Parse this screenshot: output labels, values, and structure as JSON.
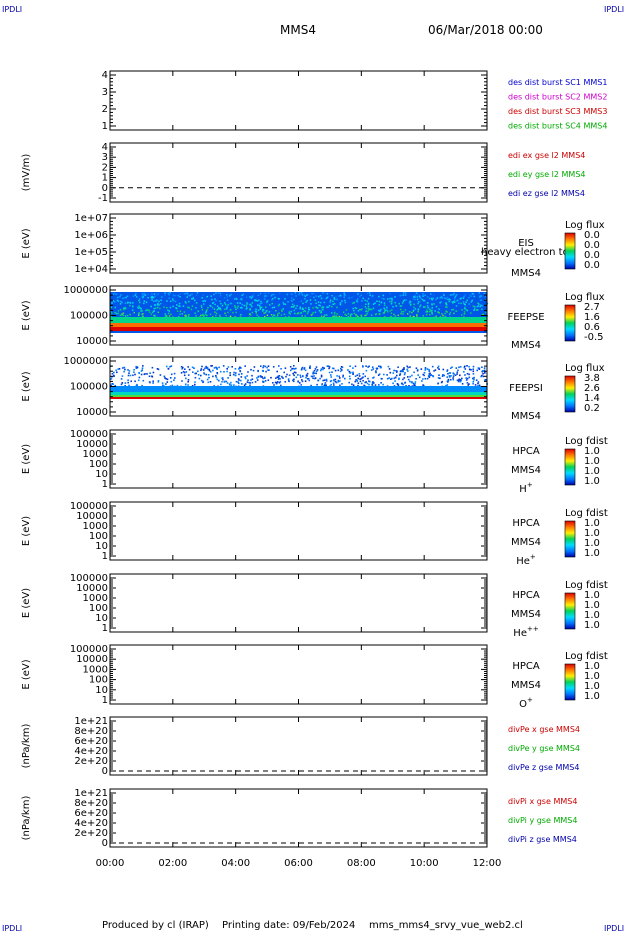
{
  "corners": {
    "tl": "IPDLI",
    "tr": "IPDLI",
    "bl": "IPDLI",
    "br": "IPDLI"
  },
  "header": {
    "spacecraft": "MMS4",
    "datetime": "06/Mar/2018 00:00"
  },
  "footer": {
    "produced": "Produced by cl (IRAP)",
    "printing": "Printing date: 09/Feb/2024",
    "filename": "mms_mms4_srvy_vue_web2.cl"
  },
  "chart_data": {
    "type": "multi-panel",
    "x_tick_labels": [
      "00:00",
      "02:00",
      "04:00",
      "06:00",
      "08:00",
      "10:00",
      "12:00"
    ],
    "panels": [
      {
        "kind": "line",
        "ylabel": "",
        "y_ticks": [
          "4",
          "3",
          "2",
          "1"
        ],
        "legend": [
          {
            "text": "des dist burst SC1 MMS1",
            "color": "#0000cc"
          },
          {
            "text": "des dist burst SC2 MMS2",
            "color": "#cc00cc"
          },
          {
            "text": "des dist burst SC3 MMS3",
            "color": "#cc0000"
          },
          {
            "text": "des dist burst SC4 MMS4",
            "color": "#00aa00"
          }
        ]
      },
      {
        "kind": "line",
        "ylabel": "(mV/m)",
        "y_ticks": [
          "4",
          "3",
          "2",
          "1",
          "0",
          "-1"
        ],
        "dashed_at": "0",
        "legend": [
          {
            "text": "edi ex gse l2 MMS4",
            "color": "#cc0000"
          },
          {
            "text": "edi ey gse l2 MMS4",
            "color": "#00aa00"
          },
          {
            "text": "edi ez gse l2 MMS4",
            "color": "#0000aa"
          }
        ]
      },
      {
        "kind": "spectrogram",
        "ylabel": "E (eV)",
        "y_ticks": [
          "1e+07",
          "1e+06",
          "1e+05",
          "1e+04"
        ],
        "labels": [
          "EIS",
          "MMS4"
        ],
        "overlay": "heavy electron to",
        "colorbar_title": "Log flux",
        "colorbar_ticks": [
          "0.0",
          "0.0",
          "0.0",
          "0.0"
        ]
      },
      {
        "kind": "spectrogram",
        "ylabel": "E (eV)",
        "y_ticks": [
          "1000000",
          "100000",
          "10000"
        ],
        "labels": [
          "FEEPSE",
          "MMS4"
        ],
        "colorbar_title": "Log flux",
        "colorbar_ticks": [
          "2.7",
          "1.6",
          "0.6",
          "-0.5"
        ]
      },
      {
        "kind": "spectrogram",
        "ylabel": "E (eV)",
        "y_ticks": [
          "1000000",
          "100000",
          "10000"
        ],
        "labels": [
          "FEEPSI",
          "MMS4"
        ],
        "colorbar_title": "Log flux",
        "colorbar_ticks": [
          "3.8",
          "2.6",
          "1.4",
          "0.2"
        ]
      },
      {
        "kind": "spectrogram",
        "ylabel": "E (eV)",
        "y_ticks": [
          "100000",
          "10000",
          "1000",
          "100",
          "10",
          "1"
        ],
        "labels": [
          "HPCA",
          "MMS4"
        ],
        "species": "H",
        "charge": "+",
        "colorbar_title": "Log fdist",
        "colorbar_ticks": [
          "1.0",
          "1.0",
          "1.0",
          "1.0"
        ]
      },
      {
        "kind": "spectrogram",
        "ylabel": "E (eV)",
        "y_ticks": [
          "100000",
          "10000",
          "1000",
          "100",
          "10",
          "1"
        ],
        "labels": [
          "HPCA",
          "MMS4"
        ],
        "species": "He",
        "charge": "+",
        "colorbar_title": "Log fdist",
        "colorbar_ticks": [
          "1.0",
          "1.0",
          "1.0",
          "1.0"
        ]
      },
      {
        "kind": "spectrogram",
        "ylabel": "E (eV)",
        "y_ticks": [
          "100000",
          "10000",
          "1000",
          "100",
          "10",
          "1"
        ],
        "labels": [
          "HPCA",
          "MMS4"
        ],
        "species": "He",
        "charge": "++",
        "colorbar_title": "Log fdist",
        "colorbar_ticks": [
          "1.0",
          "1.0",
          "1.0",
          "1.0"
        ]
      },
      {
        "kind": "spectrogram",
        "ylabel": "E (eV)",
        "y_ticks": [
          "100000",
          "10000",
          "1000",
          "100",
          "10",
          "1"
        ],
        "labels": [
          "HPCA",
          "MMS4"
        ],
        "species": "O",
        "charge": "+",
        "colorbar_title": "Log fdist",
        "colorbar_ticks": [
          "1.0",
          "1.0",
          "1.0",
          "1.0"
        ]
      },
      {
        "kind": "line",
        "ylabel": "(nPa/km)",
        "y_ticks": [
          "1e+21",
          "8e+20",
          "6e+20",
          "4e+20",
          "2e+20",
          "0"
        ],
        "dashed_at": "0",
        "legend": [
          {
            "text": "divPe x gse MMS4",
            "color": "#cc0000"
          },
          {
            "text": "divPe y gse MMS4",
            "color": "#00aa00"
          },
          {
            "text": "divPe z gse MMS4",
            "color": "#0000aa"
          }
        ]
      },
      {
        "kind": "line",
        "ylabel": "(nPa/km)",
        "y_ticks": [
          "1e+21",
          "8e+20",
          "6e+20",
          "4e+20",
          "2e+20",
          "0"
        ],
        "dashed_at": "0",
        "legend": [
          {
            "text": "divPi x gse MMS4",
            "color": "#cc0000"
          },
          {
            "text": "divPi y gse MMS4",
            "color": "#00aa00"
          },
          {
            "text": "divPi z gse MMS4",
            "color": "#0000aa"
          }
        ]
      }
    ]
  }
}
